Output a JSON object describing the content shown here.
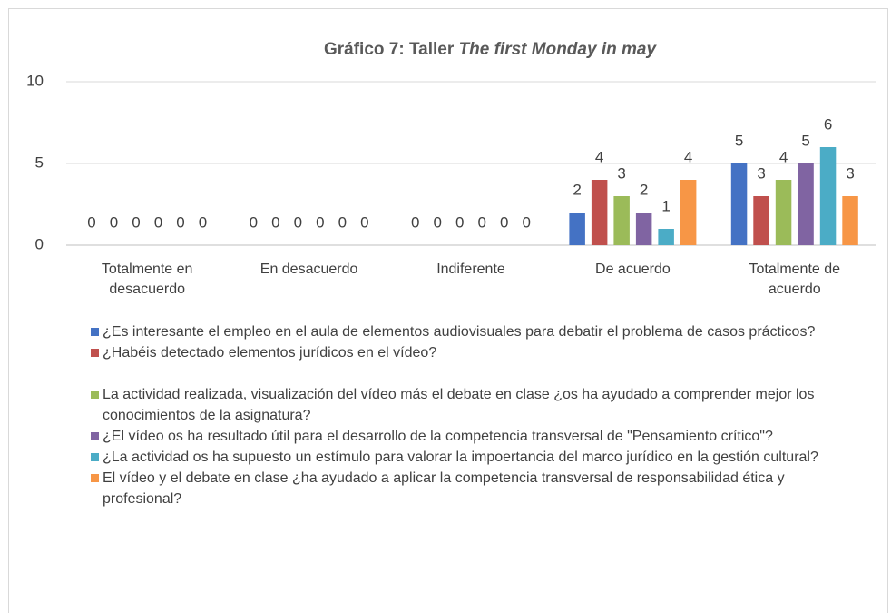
{
  "chart_data": {
    "type": "bar",
    "title": [
      "Gráfico 7: Taller",
      "The first Monday in may"
    ],
    "categories": [
      "Totalmente en desacuerdo",
      "En desacuerdo",
      "Indiferente",
      "De acuerdo",
      "Totalmente de acuerdo"
    ],
    "series": [
      {
        "name": "¿Es interesante el empleo en el aula de elementos audiovisuales para debatir el problema de casos prácticos?",
        "color": "#4472c4",
        "values": [
          0,
          0,
          0,
          2,
          5
        ]
      },
      {
        "name": "¿Habéis detectado elementos jurídicos en el vídeo?",
        "color": "#c0504d",
        "values": [
          0,
          0,
          0,
          4,
          3
        ]
      },
      {
        "name": "La actividad realizada, visualización del vídeo más el debate en clase ¿os ha ayudado a comprender mejor los conocimientos de la asignatura?",
        "color": "#9bbb59",
        "values": [
          0,
          0,
          0,
          3,
          4
        ]
      },
      {
        "name": "¿El vídeo os ha resultado útil para el desarrollo de la competencia transversal de \"Pensamiento crítico\"?",
        "color": "#8064a2",
        "values": [
          0,
          0,
          0,
          2,
          5
        ]
      },
      {
        "name": "¿La actividad os ha supuesto un estímulo para valorar la impoertancia del marco jurídico en la gestión cultural?",
        "color": "#4bacc6",
        "values": [
          0,
          0,
          0,
          1,
          6
        ]
      },
      {
        "name": "El vídeo y el debate en clase ¿ha ayudado a aplicar la competencia transversal de responsabilidad ética y profesional?",
        "color": "#f79646",
        "values": [
          0,
          0,
          0,
          4,
          3
        ]
      }
    ],
    "ylim": [
      0,
      10
    ],
    "yticks": [
      0,
      5,
      10
    ],
    "grid": true,
    "legend": "bottom"
  }
}
